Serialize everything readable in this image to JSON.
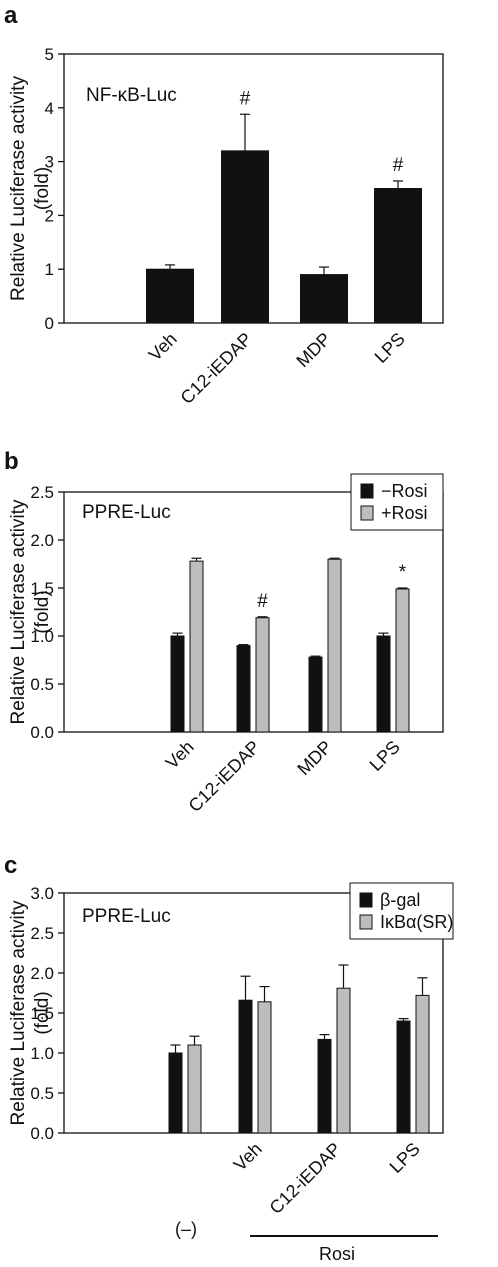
{
  "chart_data": [
    {
      "panel": "a",
      "type": "bar",
      "inner_label": "NF-κB-Luc",
      "ylabel": "Relative Luciferase activity\n(fold)",
      "categories": [
        "Veh",
        "C12-iEDAP",
        "MDP",
        "LPS"
      ],
      "series": [
        {
          "values": [
            1.0,
            3.2,
            0.9,
            2.5
          ],
          "errors": [
            0.08,
            0.68,
            0.14,
            0.14
          ],
          "color": "#111111"
        }
      ],
      "annotations": [
        "",
        "#",
        "",
        "#"
      ],
      "ylim": [
        0,
        5
      ],
      "yticks": [
        "0",
        "1",
        "2",
        "3",
        "4",
        "5"
      ]
    },
    {
      "panel": "b",
      "type": "bar",
      "inner_label": "PPRE-Luc",
      "ylabel": "Relative Luciferase activity\n(fold)",
      "categories": [
        "Veh",
        "C12-iEDAP",
        "MDP",
        "LPS"
      ],
      "series": [
        {
          "name": "−Rosi",
          "values": [
            1.0,
            0.9,
            0.78,
            1.0
          ],
          "errors": [
            0.03,
            0.01,
            0.01,
            0.03
          ],
          "color": "#111111"
        },
        {
          "name": "+Rosi",
          "values": [
            1.78,
            1.19,
            1.8,
            1.49
          ],
          "errors": [
            0.03,
            0.01,
            0.01,
            0.01
          ],
          "color": "#bdbdbd"
        }
      ],
      "annotations_series2": [
        "",
        "#",
        "",
        "*"
      ],
      "legend_position": "top-right",
      "ylim": [
        0,
        2.5
      ],
      "yticks": [
        "0.0",
        "0.5",
        "1.0",
        "1.5",
        "2.0",
        "2.5"
      ]
    },
    {
      "panel": "c",
      "type": "bar",
      "inner_label": "PPRE-Luc",
      "ylabel": "Relative Luciferase activity\n(fold)",
      "categories": [
        "",
        "Veh",
        "C12-iEDAP",
        "LPS"
      ],
      "series": [
        {
          "name": "β-gal",
          "values": [
            1.0,
            1.66,
            1.17,
            1.4
          ],
          "errors": [
            0.1,
            0.3,
            0.06,
            0.03
          ],
          "color": "#111111"
        },
        {
          "name": "IκBα(SR)",
          "values": [
            1.1,
            1.64,
            1.81,
            1.72
          ],
          "errors": [
            0.11,
            0.19,
            0.29,
            0.22
          ],
          "color": "#bdbdbd"
        }
      ],
      "legend_position": "top-right",
      "ylim": [
        0,
        3.0
      ],
      "yticks": [
        "0.0",
        "0.5",
        "1.0",
        "1.5",
        "2.0",
        "2.5",
        "3.0"
      ],
      "group_labels": {
        "untreated": "(–)",
        "treated": "Rosi"
      }
    }
  ]
}
